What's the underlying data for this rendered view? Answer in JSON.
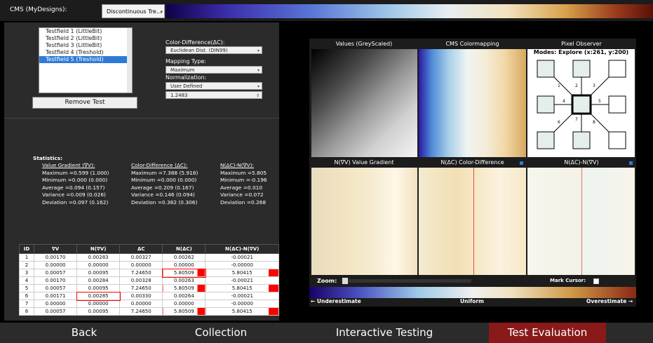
{
  "top": {
    "cms_label": "CMS (MyDesigns):",
    "cms_select": "Discontinuous Tre..."
  },
  "tests": {
    "items": [
      "Testfield 1 (LittleBit)",
      "Testfield 2 (LittleBit)",
      "Testfield 3 (LittleBit)",
      "Testfield 4 (Treshold)",
      "Testfield 5 (Treshold)"
    ],
    "selected_index": 4,
    "remove_label": "Remove Test"
  },
  "settings": {
    "color_diff_label": "Color-Difference(ΔC):",
    "color_diff_value": "Euclidean Dist. (DIN99)",
    "mapping_label": "Mapping Type:",
    "mapping_value": "Maximum",
    "normalization_label": "Normalization:",
    "normalization_value": "User Defined",
    "norm_number": "1.2483"
  },
  "stats": {
    "title": "Statistics:",
    "col1_header": "Value Gradient (∇V):",
    "col1": [
      "Maximum =0.599 (1.000)",
      "Minimum =0.000 (0.000)",
      "Average =0.094 (0.157)",
      "Variance =0.009 (0.026)",
      "Deviation =0.097 (0.162)"
    ],
    "col2_header": "Color-Difference (ΔC):",
    "col2": [
      "Maximum =7.388 (5.918)",
      "Minimum =0.000 (0.000)",
      "Average =0.209 (0.167)",
      "Variance =0.146 (0.094)",
      "Deviation =0.382 (0.306)"
    ],
    "col3_header": "N(ΔC)-N(∇V):",
    "col3": [
      "Maximum =5.805",
      "Minimum =-0.196",
      "Average =0.010",
      "Variance =0.072",
      "Deviation =0.268"
    ]
  },
  "table": {
    "headers": [
      "ID",
      "∇V",
      "N(∇V)",
      "ΔC",
      "N(ΔC)",
      "N(ΔC)-N(∇V)"
    ],
    "rows": [
      [
        "1",
        "0.00170",
        "0.00283",
        "0.00327",
        "0.00262",
        "-0.00021"
      ],
      [
        "2",
        "0.00000",
        "0.00000",
        "0.00000",
        "0.00000",
        "-0.00000"
      ],
      [
        "3",
        "0.00057",
        "0.00095",
        "7.24650",
        "5.80509",
        "5.80415"
      ],
      [
        "4",
        "0.00170",
        "0.00284",
        "0.00328",
        "0.00263",
        "-0.00021"
      ],
      [
        "5",
        "0.00057",
        "0.00095",
        "7.24650",
        "5.80509",
        "5.80415"
      ],
      [
        "6",
        "0.00171",
        "0.00285",
        "0.00330",
        "0.00264",
        "-0.00021"
      ],
      [
        "7",
        "0.00000",
        "0.00000",
        "0.00000",
        "0.00000",
        "-0.00000"
      ],
      [
        "8",
        "0.00057",
        "0.00095",
        "7.24650",
        "5.80509",
        "5.80415"
      ]
    ]
  },
  "panels": {
    "values_title": "Values (GreyScaled)",
    "cms_title": "CMS Colormapping",
    "observer_title": "Pixel Observer",
    "observer_modes": "Modes: Explore (x:261, y:200)",
    "grad_title": "N(∇V) Value Gradient",
    "cdiff_title": "N(ΔC) Color-Difference",
    "diff_title": "N(ΔC)-N(∇V)",
    "zoom_label": "Zoom:",
    "mark_cursor_label": "Mark Cursor:",
    "under_label": "← Underestimate",
    "uniform_label": "Uniform",
    "over_label": "Overestimate →",
    "neighbors": [
      "1",
      "2",
      "3",
      "4",
      "5",
      "6",
      "7",
      "8"
    ]
  },
  "nav": {
    "back": "Back",
    "collection": "Collection",
    "interactive": "Interactive Testing",
    "evaluation": "Test Evaluation"
  },
  "colors": {
    "active_tab": "#8a1a1a",
    "highlight": "#ff0000",
    "selection": "#2f7ad6"
  }
}
